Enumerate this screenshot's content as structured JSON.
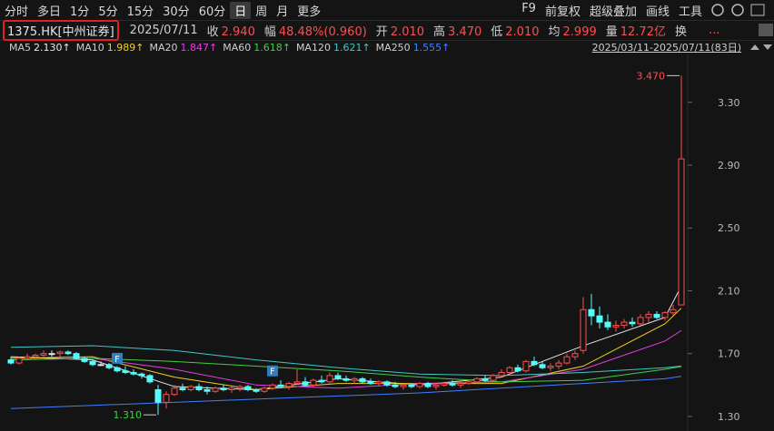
{
  "toolbar": {
    "periods": [
      "分时",
      "多日",
      "1分",
      "5分",
      "15分",
      "30分",
      "60分",
      "日",
      "周",
      "月",
      "更多"
    ],
    "active": 7,
    "tools": [
      "F9",
      "前复权",
      "超级叠加",
      "画线",
      "工具"
    ]
  },
  "info": {
    "symbol": "1375.HK[中州证券]",
    "date": "2025/07/11",
    "quote": [
      {
        "label": "收",
        "value": "2.940"
      },
      {
        "label": "幅",
        "value": "48.48%(0.960)"
      },
      {
        "label": "开",
        "value": "2.010"
      },
      {
        "label": "高",
        "value": "3.470"
      },
      {
        "label": "低",
        "value": "2.010"
      },
      {
        "label": "均",
        "value": "2.999"
      },
      {
        "label": "量",
        "value": "12.72亿"
      }
    ],
    "tail": "换",
    "more": "..."
  },
  "ma_legend": {
    "items": [
      {
        "name": "MA5",
        "value": "2.130↑",
        "color": "#e8e8e8"
      },
      {
        "name": "MA10",
        "value": "1.989↑",
        "color": "#f0d020"
      },
      {
        "name": "MA20",
        "value": "1.847↑",
        "color": "#e040e0"
      },
      {
        "name": "MA60",
        "value": "1.618↑",
        "color": "#40d040"
      },
      {
        "name": "MA120",
        "value": "1.621↑",
        "color": "#40c8c8"
      },
      {
        "name": "MA250",
        "value": "1.555↑",
        "color": "#4080ff"
      }
    ],
    "range": "2025/03/11-2025/07/11(83日)"
  },
  "chart_data": {
    "type": "candlestick",
    "open": [
      1.66,
      1.64,
      1.67,
      1.68,
      1.69,
      1.7,
      1.7,
      1.71,
      1.7,
      1.67,
      1.65,
      1.63,
      1.63,
      1.61,
      1.59,
      1.58,
      1.57,
      1.56,
      1.47,
      1.39,
      1.44,
      1.48,
      1.47,
      1.49,
      1.47,
      1.46,
      1.48,
      1.47,
      1.48,
      1.49,
      1.47,
      1.46,
      1.48,
      1.5,
      1.49,
      1.51,
      1.52,
      1.5,
      1.53,
      1.52,
      1.56,
      1.54,
      1.53,
      1.54,
      1.52,
      1.51,
      1.52,
      1.5,
      1.49,
      1.5,
      1.49,
      1.51,
      1.49,
      1.5,
      1.51,
      1.5,
      1.51,
      1.52,
      1.54,
      1.53,
      1.56,
      1.58,
      1.61,
      1.59,
      1.65,
      1.63,
      1.61,
      1.62,
      1.64,
      1.68,
      1.72,
      1.98,
      1.94,
      1.9,
      1.87,
      1.88,
      1.9,
      1.89,
      1.93,
      1.95,
      1.93,
      1.96,
      2.01
    ],
    "high": [
      1.68,
      1.68,
      1.7,
      1.7,
      1.72,
      1.72,
      1.72,
      1.72,
      1.71,
      1.68,
      1.66,
      1.65,
      1.64,
      1.62,
      1.62,
      1.6,
      1.58,
      1.57,
      1.5,
      1.46,
      1.5,
      1.51,
      1.5,
      1.51,
      1.49,
      1.49,
      1.5,
      1.49,
      1.5,
      1.5,
      1.48,
      1.49,
      1.51,
      1.53,
      1.52,
      1.6,
      1.55,
      1.54,
      1.56,
      1.58,
      1.58,
      1.56,
      1.55,
      1.55,
      1.54,
      1.53,
      1.53,
      1.52,
      1.51,
      1.51,
      1.52,
      1.52,
      1.51,
      1.52,
      1.53,
      1.52,
      1.53,
      1.55,
      1.56,
      1.57,
      1.6,
      1.62,
      1.63,
      1.66,
      1.68,
      1.65,
      1.64,
      1.66,
      1.7,
      1.72,
      2.06,
      2.08,
      2.0,
      1.95,
      1.91,
      1.92,
      1.93,
      1.95,
      1.97,
      1.97,
      1.97,
      2.01,
      3.47
    ],
    "low": [
      1.63,
      1.63,
      1.66,
      1.66,
      1.68,
      1.68,
      1.68,
      1.69,
      1.66,
      1.64,
      1.62,
      1.62,
      1.6,
      1.58,
      1.57,
      1.56,
      1.54,
      1.51,
      1.31,
      1.35,
      1.43,
      1.46,
      1.46,
      1.46,
      1.44,
      1.45,
      1.46,
      1.45,
      1.46,
      1.46,
      1.45,
      1.45,
      1.47,
      1.48,
      1.47,
      1.5,
      1.49,
      1.49,
      1.51,
      1.51,
      1.53,
      1.52,
      1.51,
      1.51,
      1.5,
      1.49,
      1.49,
      1.48,
      1.47,
      1.48,
      1.48,
      1.48,
      1.47,
      1.49,
      1.49,
      1.48,
      1.5,
      1.51,
      1.52,
      1.52,
      1.55,
      1.56,
      1.58,
      1.58,
      1.62,
      1.6,
      1.59,
      1.6,
      1.63,
      1.66,
      1.7,
      1.88,
      1.86,
      1.85,
      1.84,
      1.86,
      1.87,
      1.88,
      1.9,
      1.92,
      1.91,
      1.94,
      2.01
    ],
    "close": [
      1.64,
      1.67,
      1.68,
      1.69,
      1.7,
      1.7,
      1.71,
      1.7,
      1.67,
      1.65,
      1.63,
      1.63,
      1.61,
      1.59,
      1.58,
      1.57,
      1.56,
      1.52,
      1.39,
      1.44,
      1.48,
      1.47,
      1.49,
      1.47,
      1.46,
      1.48,
      1.47,
      1.48,
      1.49,
      1.47,
      1.46,
      1.48,
      1.5,
      1.49,
      1.51,
      1.52,
      1.5,
      1.53,
      1.52,
      1.56,
      1.54,
      1.53,
      1.54,
      1.52,
      1.51,
      1.52,
      1.5,
      1.49,
      1.5,
      1.49,
      1.51,
      1.49,
      1.5,
      1.51,
      1.5,
      1.51,
      1.52,
      1.54,
      1.53,
      1.56,
      1.58,
      1.61,
      1.59,
      1.65,
      1.63,
      1.61,
      1.62,
      1.64,
      1.68,
      1.7,
      1.98,
      1.94,
      1.9,
      1.87,
      1.88,
      1.9,
      1.89,
      1.93,
      1.95,
      1.93,
      1.96,
      1.98,
      2.94
    ],
    "up_color": "#ff4d4d",
    "down_color": "#54fcfc",
    "flat_color": "#e8e8e8",
    "ma_series": [
      {
        "name": "MA5",
        "color": "#e8e8e8",
        "x": [
          0,
          10,
          20,
          30,
          40,
          50,
          60,
          70,
          80,
          82
        ],
        "values": [
          1.68,
          1.66,
          1.49,
          1.47,
          1.54,
          1.5,
          1.55,
          1.75,
          1.93,
          2.13
        ]
      },
      {
        "name": "MA10",
        "color": "#f0d020",
        "x": [
          0,
          10,
          20,
          30,
          40,
          50,
          60,
          70,
          80,
          82
        ],
        "values": [
          1.67,
          1.68,
          1.55,
          1.47,
          1.51,
          1.51,
          1.51,
          1.62,
          1.89,
          1.989
        ]
      },
      {
        "name": "MA20",
        "color": "#e040e0",
        "x": [
          0,
          10,
          20,
          30,
          40,
          50,
          60,
          70,
          80,
          82
        ],
        "values": [
          1.66,
          1.67,
          1.6,
          1.5,
          1.48,
          1.51,
          1.52,
          1.6,
          1.78,
          1.847
        ]
      },
      {
        "name": "MA60",
        "color": "#40d040",
        "x": [
          0,
          10,
          20,
          30,
          40,
          50,
          60,
          70,
          80,
          82
        ],
        "values": [
          1.66,
          1.67,
          1.65,
          1.62,
          1.59,
          1.55,
          1.52,
          1.53,
          1.6,
          1.618
        ]
      },
      {
        "name": "MA120",
        "color": "#40c8c8",
        "x": [
          0,
          10,
          20,
          30,
          40,
          50,
          60,
          70,
          80,
          82
        ],
        "values": [
          1.74,
          1.75,
          1.72,
          1.66,
          1.61,
          1.57,
          1.56,
          1.58,
          1.61,
          1.621
        ]
      },
      {
        "name": "MA250",
        "color": "#4080ff",
        "x": [
          0,
          10,
          20,
          30,
          40,
          50,
          60,
          70,
          80,
          82
        ],
        "values": [
          1.35,
          1.37,
          1.39,
          1.41,
          1.43,
          1.45,
          1.48,
          1.51,
          1.54,
          1.555
        ]
      }
    ],
    "markers": [
      {
        "label": "F",
        "x": 13,
        "value": 1.67
      },
      {
        "label": "F",
        "x": 32,
        "value": 1.59
      }
    ],
    "high_label": "3.470",
    "low_label": "1.310",
    "ylim": [
      1.236,
      3.605
    ],
    "yticks": [
      {
        "value": 1.3,
        "label": "1.30"
      },
      {
        "value": 1.7,
        "label": "1.70"
      },
      {
        "value": 2.1,
        "label": "2.10"
      },
      {
        "value": 2.5,
        "label": "2.50"
      },
      {
        "value": 2.9,
        "label": "2.90"
      },
      {
        "value": 3.3,
        "label": "3.30"
      }
    ]
  }
}
